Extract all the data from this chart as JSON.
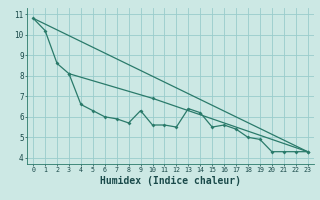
{
  "xlabel": "Humidex (Indice chaleur)",
  "ylabel": "",
  "bg_color": "#cce8e4",
  "line_color": "#2a7a6a",
  "grid_color": "#99cccc",
  "xlim": [
    -0.5,
    23.5
  ],
  "ylim": [
    3.7,
    11.3
  ],
  "xticks": [
    0,
    1,
    2,
    3,
    4,
    5,
    6,
    7,
    8,
    9,
    10,
    11,
    12,
    13,
    14,
    15,
    16,
    17,
    18,
    19,
    20,
    21,
    22,
    23
  ],
  "yticks": [
    4,
    5,
    6,
    7,
    8,
    9,
    10,
    11
  ],
  "line1_x": [
    0,
    1,
    2,
    3,
    10,
    23
  ],
  "line1_y": [
    10.8,
    10.2,
    8.6,
    8.1,
    6.9,
    4.3
  ],
  "line2_x": [
    3,
    4,
    5,
    6,
    7,
    8,
    9,
    10,
    11,
    12,
    13,
    14,
    15,
    16,
    17,
    18,
    19,
    20,
    21,
    22,
    23
  ],
  "line2_y": [
    8.1,
    6.6,
    6.3,
    6.0,
    5.9,
    5.7,
    6.3,
    5.6,
    5.6,
    5.5,
    6.4,
    6.2,
    5.5,
    5.6,
    5.4,
    5.0,
    4.9,
    4.3,
    4.3,
    4.3,
    4.3
  ],
  "line3_x": [
    0,
    23
  ],
  "line3_y": [
    10.8,
    4.3
  ],
  "tick_fontsize": 5.5,
  "xlabel_fontsize": 7.0
}
